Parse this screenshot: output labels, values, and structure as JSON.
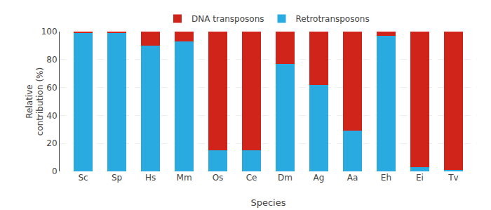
{
  "chart_data": {
    "type": "bar",
    "stacked": true,
    "categories": [
      "Sc",
      "Sp",
      "Hs",
      "Mm",
      "Os",
      "Ce",
      "Dm",
      "Ag",
      "Aa",
      "Eh",
      "Ei",
      "Tv"
    ],
    "series": [
      {
        "name": "Retrotransposons",
        "color": "#29ABE2",
        "values": [
          99,
          99,
          90,
          93,
          15,
          15,
          77,
          62,
          29,
          97,
          3,
          1
        ]
      },
      {
        "name": "DNA transposons",
        "color": "#D0231A",
        "values": [
          1,
          1,
          10,
          7,
          85,
          85,
          23,
          38,
          71,
          3,
          97,
          99
        ]
      }
    ],
    "xlabel": "Species",
    "ylabel": "Relative\ncontribution (%)",
    "ylim": [
      0,
      100
    ],
    "yticks": [
      0,
      20,
      40,
      60,
      80,
      100
    ],
    "grid": true,
    "legend": "top"
  }
}
